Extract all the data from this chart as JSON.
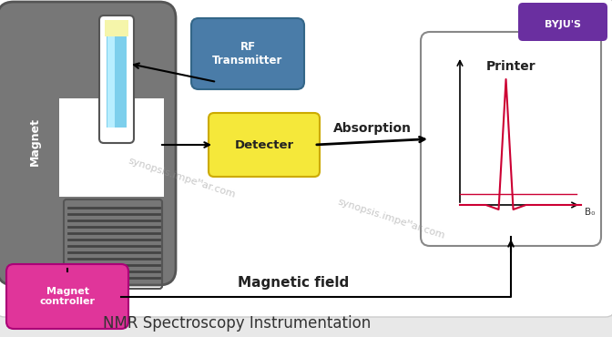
{
  "title": "NMR Spectroscopy Instrumentation",
  "title_fontsize": 12,
  "title_color": "#333333",
  "background_color": "#e8e8e8",
  "magnet_color": "#777777",
  "magnet_label": "Magnet",
  "rf_label": "RF\nTransmitter",
  "rf_color": "#4a7ca8",
  "rf_text_color": "white",
  "det_label": "Detecter",
  "det_color": "#f5e83a",
  "det_text_color": "#222222",
  "mc_label": "Magnet\ncontroller",
  "mc_color": "#e0359a",
  "mc_text_color": "white",
  "printer_label": "Printer",
  "absorption_label": "Absorption",
  "magnetic_field_label": "Magnetic field",
  "byju_color": "#6a2fa0"
}
